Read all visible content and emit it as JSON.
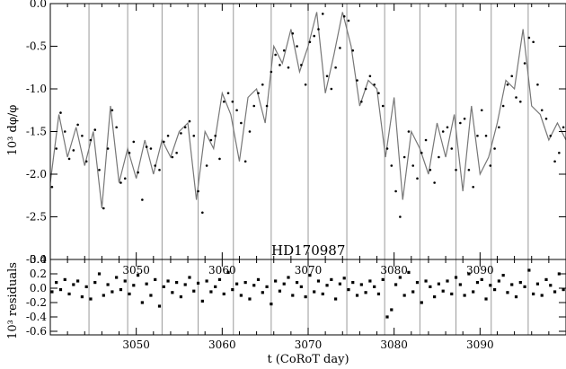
{
  "chart_data": [
    {
      "type": "scatter",
      "title": "",
      "annotation": "HD170987",
      "xlabel": "",
      "ylabel": "10³ dφ/φ",
      "xlim": [
        3040,
        3100
      ],
      "ylim": [
        -3.0,
        0.0
      ],
      "yticks": [
        0.0,
        -0.5,
        -1.0,
        -1.5,
        -2.0,
        -2.5,
        -3.0
      ],
      "ytick_labels": [
        "0.0",
        "-0.5",
        "-1.0",
        "-1.5",
        "-2.0",
        "-2.5",
        "-3.0"
      ],
      "xticks": [
        3050,
        3060,
        3070,
        3080,
        3090
      ],
      "xtick_labels": [
        "3050",
        "3060",
        "3070",
        "3080",
        "3090"
      ],
      "grid": false,
      "vertical_lines_x": [
        3044.5,
        3049.0,
        3053.0,
        3057.2,
        3061.3,
        3065.7,
        3070.0,
        3074.5,
        3078.9,
        3083.0,
        3087.2,
        3091.3,
        3095.6
      ],
      "fit_curve": {
        "x": [
          3040.0,
          3041.0,
          3042.0,
          3043.0,
          3044.0,
          3045.0,
          3046.0,
          3047.0,
          3048.0,
          3049.0,
          3050.0,
          3051.0,
          3052.0,
          3053.0,
          3054.0,
          3055.0,
          3056.0,
          3057.0,
          3058.0,
          3059.0,
          3060.0,
          3061.0,
          3062.0,
          3063.0,
          3064.0,
          3065.0,
          3066.0,
          3067.0,
          3068.0,
          3069.0,
          3070.0,
          3071.0,
          3072.0,
          3073.0,
          3074.0,
          3075.0,
          3076.0,
          3077.0,
          3078.0,
          3079.0,
          3080.0,
          3081.0,
          3082.0,
          3083.0,
          3084.0,
          3085.0,
          3086.0,
          3087.0,
          3088.0,
          3089.0,
          3090.0,
          3091.0,
          3092.0,
          3093.0,
          3094.0,
          3095.0,
          3096.0,
          3097.0,
          3098.0,
          3099.0,
          3100.0
        ],
        "y": [
          -2.1,
          -1.3,
          -1.8,
          -1.45,
          -1.9,
          -1.5,
          -2.4,
          -1.2,
          -2.1,
          -1.7,
          -2.05,
          -1.6,
          -2.0,
          -1.6,
          -1.8,
          -1.5,
          -1.4,
          -2.3,
          -1.5,
          -1.7,
          -1.05,
          -1.3,
          -1.85,
          -1.1,
          -1.0,
          -1.4,
          -0.5,
          -0.7,
          -0.3,
          -0.8,
          -0.5,
          -0.1,
          -1.05,
          -0.6,
          -0.1,
          -0.5,
          -1.2,
          -0.9,
          -1.0,
          -1.8,
          -1.1,
          -2.3,
          -1.5,
          -1.7,
          -2.0,
          -1.4,
          -1.8,
          -1.3,
          -2.2,
          -1.2,
          -2.0,
          -1.8,
          -1.4,
          -0.9,
          -1.0,
          -0.3,
          -1.2,
          -1.3,
          -1.6,
          -1.4,
          -1.6
        ]
      },
      "series": [
        {
          "x": [
            3040.2,
            3040.7,
            3041.2,
            3041.7,
            3042.2,
            3042.7,
            3043.2,
            3043.7,
            3044.2,
            3044.7,
            3045.2,
            3045.7,
            3046.2,
            3046.7,
            3047.2,
            3047.7,
            3048.2,
            3048.7,
            3049.2,
            3049.7,
            3050.2,
            3050.7,
            3051.2,
            3051.7,
            3052.2,
            3052.7,
            3053.2,
            3053.7,
            3054.2,
            3054.7,
            3055.2,
            3055.7,
            3056.2,
            3056.7,
            3057.2,
            3057.7,
            3058.2,
            3058.7,
            3059.2,
            3059.7,
            3060.2,
            3060.7,
            3061.2,
            3061.7,
            3062.2,
            3062.7,
            3063.2,
            3063.7,
            3064.2,
            3064.7,
            3065.2,
            3065.7,
            3066.2,
            3066.7,
            3067.2,
            3067.7,
            3068.2,
            3068.7,
            3069.2,
            3069.7,
            3070.2,
            3070.7,
            3071.2,
            3071.7,
            3072.2,
            3072.7,
            3073.2,
            3073.7,
            3074.2,
            3074.7,
            3075.2,
            3075.7,
            3076.2,
            3076.7,
            3077.2,
            3077.7,
            3078.2,
            3078.7,
            3079.2,
            3079.7,
            3080.2,
            3080.7,
            3081.2,
            3081.7,
            3082.2,
            3082.7,
            3083.2,
            3083.7,
            3084.2,
            3084.7,
            3085.2,
            3085.7,
            3086.2,
            3086.7,
            3087.2,
            3087.7,
            3088.2,
            3088.7,
            3089.2,
            3089.7,
            3090.2,
            3090.7,
            3091.2,
            3091.7,
            3092.2,
            3092.7,
            3093.2,
            3093.7,
            3094.2,
            3094.7,
            3095.2,
            3095.7,
            3096.2,
            3096.7,
            3097.2,
            3097.7,
            3098.2,
            3098.7,
            3099.2,
            3099.7
          ],
          "y": [
            -2.15,
            -1.7,
            -1.28,
            -1.5,
            -1.82,
            -1.72,
            -1.42,
            -1.55,
            -1.85,
            -1.6,
            -1.48,
            -1.95,
            -2.4,
            -1.7,
            -1.25,
            -1.45,
            -2.1,
            -2.05,
            -1.75,
            -1.62,
            -1.98,
            -2.3,
            -1.68,
            -1.7,
            -1.9,
            -1.95,
            -1.62,
            -1.55,
            -1.8,
            -1.75,
            -1.52,
            -1.45,
            -1.38,
            -1.55,
            -2.2,
            -2.45,
            -1.9,
            -1.6,
            -1.55,
            -1.82,
            -1.15,
            -1.05,
            -1.15,
            -1.25,
            -1.4,
            -1.85,
            -1.5,
            -1.2,
            -1.05,
            -0.95,
            -1.2,
            -0.8,
            -0.6,
            -0.72,
            -0.55,
            -0.75,
            -0.35,
            -0.5,
            -0.72,
            -0.95,
            -0.45,
            -0.38,
            -0.3,
            -0.12,
            -0.85,
            -1.0,
            -0.75,
            -0.52,
            -0.15,
            -0.2,
            -0.55,
            -0.9,
            -1.15,
            -1.0,
            -0.85,
            -0.95,
            -1.05,
            -1.2,
            -1.7,
            -1.9,
            -2.2,
            -2.5,
            -1.8,
            -1.5,
            -1.9,
            -2.05,
            -1.75,
            -1.6,
            -1.95,
            -2.1,
            -1.8,
            -1.5,
            -1.45,
            -1.7,
            -1.95,
            -1.4,
            -1.35,
            -1.95,
            -2.15,
            -1.55,
            -1.25,
            -1.55,
            -1.9,
            -1.7,
            -1.45,
            -1.2,
            -0.95,
            -0.85,
            -1.1,
            -1.15,
            -0.7,
            -0.4,
            -0.45,
            -0.95,
            -1.25,
            -1.35,
            -1.55,
            -1.85,
            -1.75,
            -1.45
          ]
        }
      ]
    },
    {
      "type": "scatter",
      "title": "",
      "xlabel": "t (CoRoT day)",
      "ylabel": "10³ residuals",
      "xlim": [
        3040,
        3100
      ],
      "ylim": [
        -0.65,
        0.4
      ],
      "yticks": [
        0.4,
        0.2,
        0.0,
        -0.2,
        -0.4,
        -0.6
      ],
      "ytick_labels": [
        "0.4",
        "0.2",
        "0.0",
        "-0.2",
        "-0.4",
        "-0.6"
      ],
      "xticks": [
        3050,
        3060,
        3070,
        3080,
        3090
      ],
      "xtick_labels": [
        "3050",
        "3060",
        "3070",
        "3080",
        "3090"
      ],
      "grid": false,
      "vertical_lines_x": [
        3044.5,
        3049.0,
        3053.0,
        3057.2,
        3061.3,
        3065.7,
        3070.0,
        3074.5,
        3078.9,
        3083.0,
        3087.2,
        3091.3,
        3095.6
      ],
      "series": [
        {
          "x": [
            3040.2,
            3040.7,
            3041.2,
            3041.7,
            3042.2,
            3042.7,
            3043.2,
            3043.7,
            3044.2,
            3044.7,
            3045.2,
            3045.7,
            3046.2,
            3046.7,
            3047.2,
            3047.7,
            3048.2,
            3048.7,
            3049.2,
            3049.7,
            3050.2,
            3050.7,
            3051.2,
            3051.7,
            3052.2,
            3052.7,
            3053.2,
            3053.7,
            3054.2,
            3054.7,
            3055.2,
            3055.7,
            3056.2,
            3056.7,
            3057.2,
            3057.7,
            3058.2,
            3058.7,
            3059.2,
            3059.7,
            3060.2,
            3060.7,
            3061.2,
            3061.7,
            3062.2,
            3062.7,
            3063.2,
            3063.7,
            3064.2,
            3064.7,
            3065.2,
            3065.7,
            3066.2,
            3066.7,
            3067.2,
            3067.7,
            3068.2,
            3068.7,
            3069.2,
            3069.7,
            3070.2,
            3070.7,
            3071.2,
            3071.7,
            3072.2,
            3072.7,
            3073.2,
            3073.7,
            3074.2,
            3074.7,
            3075.2,
            3075.7,
            3076.2,
            3076.7,
            3077.2,
            3077.7,
            3078.2,
            3078.7,
            3079.2,
            3079.7,
            3080.2,
            3080.7,
            3081.2,
            3081.7,
            3082.2,
            3082.7,
            3083.2,
            3083.7,
            3084.2,
            3084.7,
            3085.2,
            3085.7,
            3086.2,
            3086.7,
            3087.2,
            3087.7,
            3088.2,
            3088.7,
            3089.2,
            3089.7,
            3090.2,
            3090.7,
            3091.2,
            3091.7,
            3092.2,
            3092.7,
            3093.2,
            3093.7,
            3094.2,
            3094.7,
            3095.2,
            3095.7,
            3096.2,
            3096.7,
            3097.2,
            3097.7,
            3098.2,
            3098.7,
            3099.2,
            3099.7
          ],
          "y": [
            -0.05,
            0.08,
            -0.02,
            0.12,
            -0.08,
            0.05,
            0.1,
            -0.12,
            0.02,
            -0.15,
            0.08,
            0.2,
            -0.1,
            0.05,
            -0.05,
            0.15,
            -0.02,
            0.1,
            -0.08,
            0.04,
            0.18,
            -0.2,
            0.06,
            -0.1,
            0.12,
            -0.25,
            0.02,
            0.1,
            -0.06,
            0.08,
            -0.12,
            0.05,
            0.15,
            -0.04,
            0.07,
            -0.18,
            0.1,
            -0.05,
            0.02,
            0.12,
            -0.08,
            0.22,
            -0.02,
            0.06,
            -0.1,
            0.08,
            -0.15,
            0.04,
            0.12,
            -0.06,
            0.02,
            -0.22,
            0.1,
            -0.04,
            0.06,
            0.15,
            -0.1,
            0.08,
            0.02,
            -0.12,
            0.18,
            -0.05,
            0.1,
            -0.08,
            0.04,
            0.12,
            -0.15,
            0.06,
            0.14,
            -0.02,
            0.08,
            -0.1,
            0.05,
            -0.06,
            0.1,
            0.02,
            -0.08,
            0.12,
            -0.4,
            -0.3,
            0.05,
            0.15,
            -0.1,
            0.22,
            -0.05,
            0.08,
            -0.2,
            0.1,
            0.02,
            -0.12,
            0.06,
            -0.04,
            0.1,
            -0.08,
            0.15,
            0.05,
            -0.1,
            0.2,
            -0.05,
            0.08,
            0.12,
            -0.15,
            0.04,
            -0.02,
            0.1,
            0.18,
            -0.06,
            0.05,
            -0.12,
            0.08,
            0.02,
            0.25,
            -0.08,
            0.06,
            -0.1,
            0.12,
            0.04,
            -0.05,
            0.2,
            -0.02
          ]
        }
      ]
    }
  ]
}
